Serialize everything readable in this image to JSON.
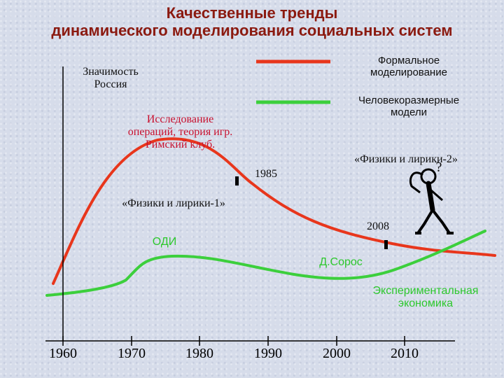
{
  "title": {
    "line1": "Качественные тренды",
    "line2": "динамического моделирования социальных систем"
  },
  "y_axis_label": {
    "line1": "Значимость",
    "line2": "Россия"
  },
  "legend": {
    "formal": {
      "line1": "Формальное",
      "line2": "моделирование",
      "color": "#e8361c"
    },
    "human": {
      "line1": "Человекоразмерные",
      "line2": "модели",
      "color": "#3ccf3c"
    }
  },
  "annotations": {
    "operations_research": {
      "line1": "Исследование",
      "line2": "операций, теория игр.",
      "line3": "Римский клуб."
    },
    "physics_lyrics_1": "«Физики и лирики-1»",
    "physics_lyrics_2": "«Физики и лирики-2»",
    "year_1985": "1985",
    "year_2008": "2008",
    "odi": "ОДИ",
    "soros": "Д.Сорос",
    "experimental": {
      "line1": "Экспериментальная",
      "line2": "экономика"
    },
    "question_mark": "?"
  },
  "x_axis": {
    "ticks": [
      "1960",
      "1970",
      "1980",
      "1990",
      "2000",
      "2010"
    ]
  },
  "colors": {
    "title": "#8b1a10",
    "red_curve": "#e8361c",
    "green_curve": "#3ccf3c",
    "axis": "#000000"
  }
}
